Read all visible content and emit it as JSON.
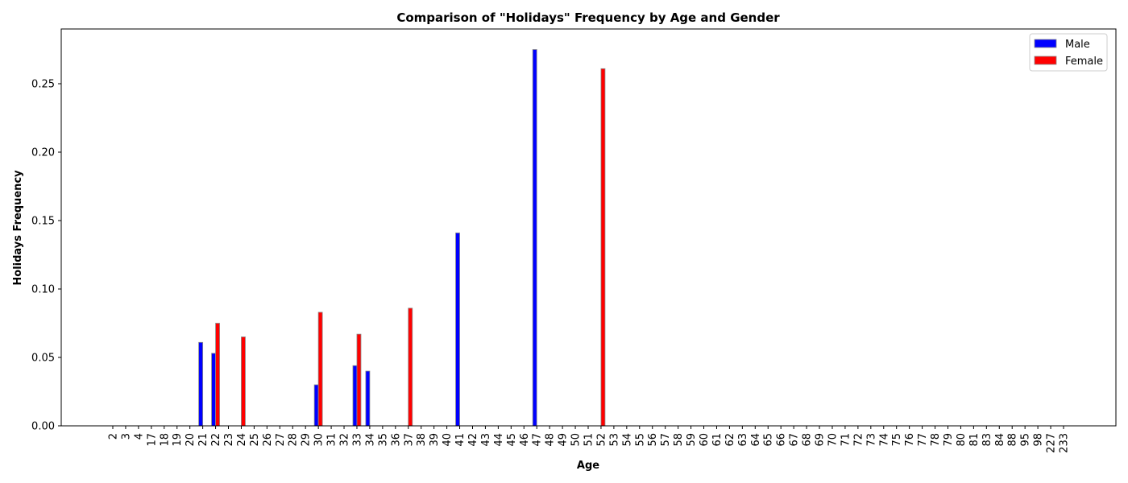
{
  "chart_data": {
    "type": "bar",
    "title": "Comparison of \"Holidays\" Frequency by Age and Gender",
    "xlabel": "Age",
    "ylabel": "Holidays Frequency",
    "categories": [
      "2",
      "3",
      "4",
      "17",
      "18",
      "19",
      "20",
      "21",
      "22",
      "23",
      "24",
      "25",
      "26",
      "27",
      "28",
      "29",
      "30",
      "31",
      "32",
      "33",
      "34",
      "35",
      "36",
      "37",
      "38",
      "39",
      "40",
      "41",
      "42",
      "43",
      "44",
      "45",
      "46",
      "47",
      "48",
      "49",
      "50",
      "51",
      "52",
      "53",
      "54",
      "55",
      "56",
      "57",
      "58",
      "59",
      "60",
      "61",
      "62",
      "63",
      "64",
      "65",
      "66",
      "67",
      "68",
      "69",
      "70",
      "71",
      "72",
      "73",
      "74",
      "75",
      "76",
      "77",
      "78",
      "79",
      "80",
      "81",
      "83",
      "84",
      "88",
      "95",
      "98",
      "227",
      "233"
    ],
    "series": [
      {
        "name": "Male",
        "color": "#0000ff",
        "values": [
          0,
          0,
          0,
          0,
          0,
          0,
          0,
          0.061,
          0.053,
          0,
          0,
          0,
          0,
          0,
          0,
          0,
          0.03,
          0,
          0,
          0.044,
          0.04,
          0,
          0,
          0,
          0,
          0,
          0,
          0.141,
          0,
          0,
          0,
          0,
          0,
          0.275,
          0,
          0,
          0,
          0,
          0,
          0,
          0,
          0,
          0,
          0,
          0,
          0,
          0,
          0,
          0,
          0,
          0,
          0,
          0,
          0,
          0,
          0,
          0,
          0,
          0,
          0,
          0,
          0,
          0,
          0,
          0,
          0,
          0,
          0,
          0,
          0,
          0,
          0,
          0,
          0,
          0
        ]
      },
      {
        "name": "Female",
        "color": "#ff0000",
        "values": [
          0,
          0,
          0,
          0,
          0,
          0,
          0,
          0,
          0.075,
          0,
          0.065,
          0,
          0,
          0,
          0,
          0,
          0.083,
          0,
          0,
          0.067,
          0,
          0,
          0,
          0.086,
          0,
          0,
          0,
          0,
          0,
          0,
          0,
          0,
          0,
          0,
          0,
          0,
          0,
          0,
          0.261,
          0,
          0,
          0,
          0,
          0,
          0,
          0,
          0,
          0,
          0,
          0,
          0,
          0,
          0,
          0,
          0,
          0,
          0,
          0,
          0,
          0,
          0,
          0,
          0,
          0,
          0,
          0,
          0,
          0,
          0,
          0,
          0,
          0,
          0,
          0,
          0
        ]
      }
    ],
    "ylim": [
      0,
      0.29
    ],
    "yticks": [
      "0.00",
      "0.05",
      "0.10",
      "0.15",
      "0.20",
      "0.25"
    ],
    "legend": "top-right",
    "grid": false
  }
}
